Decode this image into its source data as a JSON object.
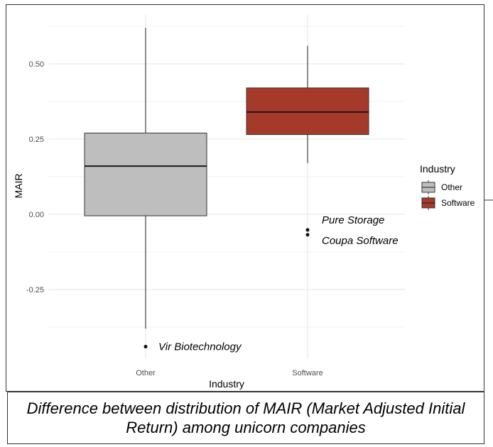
{
  "chart_data": {
    "type": "box",
    "xlabel": "Industry",
    "ylabel": "MAIR",
    "categories": [
      "Other",
      "Software"
    ],
    "ylim": [
      -0.5,
      0.63
    ],
    "yticks": [
      {
        "value": 0.5,
        "label": "0.50"
      },
      {
        "value": 0.25,
        "label": "0.25"
      },
      {
        "value": 0.0,
        "label": "0.00"
      },
      {
        "value": -0.25,
        "label": "-0.25"
      }
    ],
    "grid": true,
    "legend": {
      "title": "Industry",
      "position": "right",
      "entries": [
        {
          "label": "Other",
          "color": "#bebebe"
        },
        {
          "label": "Software",
          "color": "#a63a2a"
        }
      ]
    },
    "boxes": [
      {
        "category": "Other",
        "whisker_low": -0.38,
        "q1": -0.005,
        "median": 0.16,
        "q3": 0.27,
        "whisker_high": 0.62,
        "color": "#bebebe",
        "outliers": [
          {
            "value": -0.44,
            "label": "Vir Biotechnology"
          }
        ]
      },
      {
        "category": "Software",
        "whisker_low": 0.17,
        "q1": 0.265,
        "median": 0.34,
        "q3": 0.42,
        "whisker_high": 0.56,
        "color": "#a63a2a",
        "outliers": [
          {
            "value": -0.052,
            "label": "Pure Storage"
          },
          {
            "value": -0.068,
            "label": "Coupa Software"
          }
        ]
      }
    ]
  },
  "caption": "Difference between distribution of MAIR (Market Adjusted Initial Return) among unicorn companies"
}
